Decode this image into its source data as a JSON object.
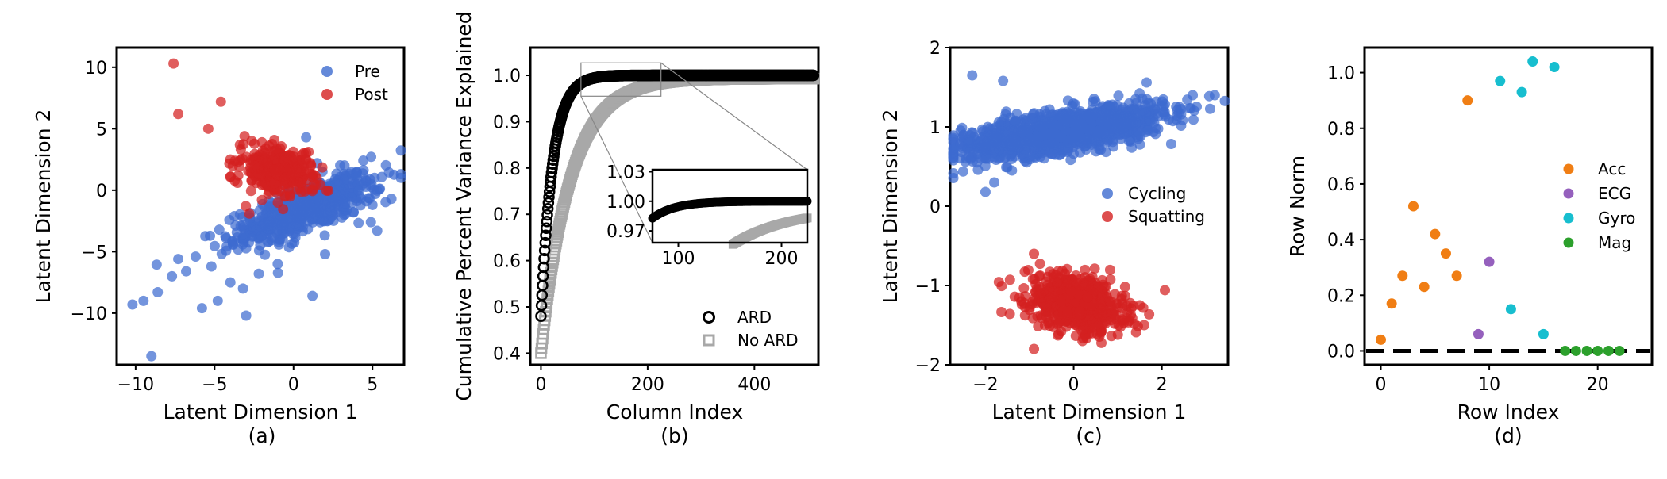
{
  "chart_data": [
    {
      "id": "a",
      "type": "scatter",
      "xlabel": "Latent Dimension 1",
      "ylabel": "Latent Dimension 2",
      "caption": "(a)",
      "xlim": [
        -11.2,
        7.0
      ],
      "ylim": [
        -14.2,
        11.6
      ],
      "xticks": [
        -10,
        -5,
        0,
        5
      ],
      "xtick_labels": [
        "−10",
        "−5",
        "0",
        "5"
      ],
      "yticks": [
        10,
        5,
        0,
        -5,
        -10
      ],
      "ytick_labels": [
        "10",
        "5",
        "0",
        "−5",
        "−10"
      ],
      "legend": {
        "position": "upper-right"
      },
      "series": [
        {
          "name": "Pre",
          "color": "#3d6bd0",
          "marker": "circle",
          "cloud": {
            "cx": 0.8,
            "cy": -1.5,
            "sx": 2.6,
            "sy": 0.9,
            "angle": 28,
            "n": 550
          },
          "points": [
            [
              -9.0,
              -13.5
            ],
            [
              -10.2,
              -9.3
            ],
            [
              -9.5,
              -9.0
            ],
            [
              -8.6,
              -8.3
            ],
            [
              -7.7,
              -7.0
            ],
            [
              -5.8,
              -9.6
            ],
            [
              -4.8,
              -9.0
            ],
            [
              -3.0,
              -10.2
            ],
            [
              1.2,
              -8.6
            ],
            [
              -6.2,
              -5.4
            ],
            [
              -5.2,
              -6.2
            ],
            [
              -6.8,
              -6.6
            ],
            [
              -2.2,
              -6.8
            ],
            [
              -1.0,
              -6.0
            ],
            [
              2.0,
              -5.2
            ],
            [
              4.9,
              -2.6
            ],
            [
              6.2,
              -0.7
            ],
            [
              5.3,
              -3.3
            ],
            [
              3.8,
              -1.8
            ],
            [
              0.8,
              4.3
            ],
            [
              1.5,
              2.2
            ],
            [
              3.2,
              0.1
            ],
            [
              -4.0,
              -7.5
            ],
            [
              -3.2,
              -8.0
            ],
            [
              -7.3,
              -5.6
            ],
            [
              5.0,
              -1.2
            ]
          ]
        },
        {
          "name": "Post",
          "color": "#d42020",
          "marker": "circle",
          "cloud": {
            "cx": -1.0,
            "cy": 1.6,
            "sx": 1.2,
            "sy": 0.9,
            "angle": -25,
            "n": 300
          },
          "points": [
            [
              -7.6,
              10.3
            ],
            [
              -7.3,
              6.2
            ],
            [
              -4.6,
              7.2
            ],
            [
              -5.4,
              5.0
            ],
            [
              -3.1,
              4.4
            ],
            [
              -2.0,
              3.9
            ],
            [
              -3.5,
              1.2
            ],
            [
              -4.0,
              2.5
            ],
            [
              0.8,
              2.5
            ],
            [
              1.3,
              0.5
            ],
            [
              -2.8,
              -1.9
            ],
            [
              -2.0,
              -0.8
            ]
          ]
        }
      ]
    },
    {
      "id": "b",
      "type": "scatter",
      "xlabel": "Column Index",
      "ylabel": "Cumulative Percent Variance Explained",
      "caption": "(b)",
      "xlim": [
        -20,
        520
      ],
      "ylim": [
        0.375,
        1.06
      ],
      "xticks": [
        0,
        200,
        400
      ],
      "xtick_labels": [
        "0",
        "200",
        "400"
      ],
      "yticks": [
        0.4,
        0.5,
        0.6,
        0.7,
        0.8,
        0.9,
        1.0
      ],
      "ytick_labels": [
        "0.4",
        "0.5",
        "0.6",
        "0.7",
        "0.8",
        "0.9",
        "1.0"
      ],
      "legend": {
        "position": "lower-right"
      },
      "series": [
        {
          "name": "ARD",
          "color": "#000000",
          "marker": "open-circle",
          "curve": "ard",
          "n": 512,
          "y_start": 0.48,
          "plateau": 1.0
        },
        {
          "name": "No ARD",
          "color": "#a8a8a8",
          "marker": "open-square",
          "curve": "noard",
          "n": 512,
          "y_start": 0.4,
          "plateau": 0.993
        }
      ],
      "inset": {
        "xlim": [
          75,
          225
        ],
        "ylim": [
          0.958,
          1.032
        ],
        "xticks": [
          100,
          200
        ],
        "xtick_labels": [
          "100",
          "200"
        ],
        "yticks": [
          1.03,
          1.0,
          0.97
        ],
        "ytick_labels": [
          "1.03",
          "1.00",
          "0.97"
        ],
        "zoom_region": {
          "x": [
            75,
            225
          ],
          "y": [
            0.955,
            1.027
          ]
        }
      }
    },
    {
      "id": "c",
      "type": "scatter",
      "xlabel": "Latent Dimension 1",
      "ylabel": "Latent Dimension 2",
      "caption": "(c)",
      "xlim": [
        -2.8,
        3.5
      ],
      "ylim": [
        -2.0,
        2.0
      ],
      "xticks": [
        -2,
        0,
        2
      ],
      "xtick_labels": [
        "−2",
        "0",
        "2"
      ],
      "yticks": [
        2,
        1,
        0,
        -1,
        -2
      ],
      "ytick_labels": [
        "2",
        "1",
        "0",
        "−1",
        "−2"
      ],
      "legend": {
        "position": "center-right"
      },
      "series": [
        {
          "name": "Cycling",
          "color": "#3d6bd0",
          "marker": "circle",
          "cloud": {
            "cx": -0.2,
            "cy": 0.95,
            "sx": 1.15,
            "sy": 0.13,
            "angle": 5,
            "n": 1200
          },
          "points": [
            [
              -2.5,
              0.9
            ],
            [
              -2.3,
              1.65
            ],
            [
              -1.6,
              1.58
            ],
            [
              -1.8,
              0.3
            ],
            [
              -2.0,
              0.18
            ],
            [
              -1.4,
              0.45
            ],
            [
              2.7,
              1.4
            ],
            [
              3.2,
              1.4
            ],
            [
              2.4,
              1.25
            ],
            [
              -2.1,
              0.6
            ]
          ]
        },
        {
          "name": "Squatting",
          "color": "#d42020",
          "marker": "circle",
          "cloud": {
            "cx": 0.05,
            "cy": -1.22,
            "sx": 0.55,
            "sy": 0.17,
            "angle": -6,
            "n": 650
          },
          "points": [
            [
              -0.9,
              -0.6
            ],
            [
              -0.9,
              -1.8
            ],
            [
              1.6,
              -1.5
            ],
            [
              1.5,
              -1.25
            ],
            [
              0.2,
              -1.7
            ]
          ]
        }
      ]
    },
    {
      "id": "d",
      "type": "scatter",
      "xlabel": "Row Index",
      "ylabel": "Row Norm",
      "caption": "(d)",
      "xlim": [
        -1.5,
        25
      ],
      "ylim": [
        -0.05,
        1.09
      ],
      "xticks": [
        0,
        10,
        20
      ],
      "xtick_labels": [
        "0",
        "10",
        "20"
      ],
      "yticks": [
        0.0,
        0.2,
        0.4,
        0.6,
        0.8,
        1.0
      ],
      "ytick_labels": [
        "0.0",
        "0.2",
        "0.4",
        "0.6",
        "0.8",
        "1.0"
      ],
      "legend": {
        "position": "center-right"
      },
      "reference_line": {
        "y": 0.0,
        "style": "dashed",
        "color": "#000000"
      },
      "series": [
        {
          "name": "Acc",
          "color": "#f07e14",
          "marker": "circle",
          "points": [
            [
              0,
              0.04
            ],
            [
              1,
              0.17
            ],
            [
              2,
              0.27
            ],
            [
              3,
              0.52
            ],
            [
              4,
              0.23
            ],
            [
              5,
              0.42
            ],
            [
              6,
              0.35
            ],
            [
              7,
              0.27
            ],
            [
              8,
              0.9
            ]
          ]
        },
        {
          "name": "ECG",
          "color": "#9560bd",
          "marker": "circle",
          "points": [
            [
              9,
              0.06
            ],
            [
              10,
              0.32
            ]
          ]
        },
        {
          "name": "Gyro",
          "color": "#17becf",
          "marker": "circle",
          "points": [
            [
              11,
              0.97
            ],
            [
              12,
              0.15
            ],
            [
              13,
              0.93
            ],
            [
              14,
              1.04
            ],
            [
              15,
              0.06
            ],
            [
              16,
              1.02
            ]
          ]
        },
        {
          "name": "Mag",
          "color": "#2ca02c",
          "marker": "circle",
          "points": [
            [
              17,
              0.0
            ],
            [
              18,
              0.0
            ],
            [
              19,
              0.0
            ],
            [
              20,
              0.0
            ],
            [
              21,
              0.0
            ],
            [
              22,
              0.0
            ]
          ]
        }
      ]
    }
  ]
}
